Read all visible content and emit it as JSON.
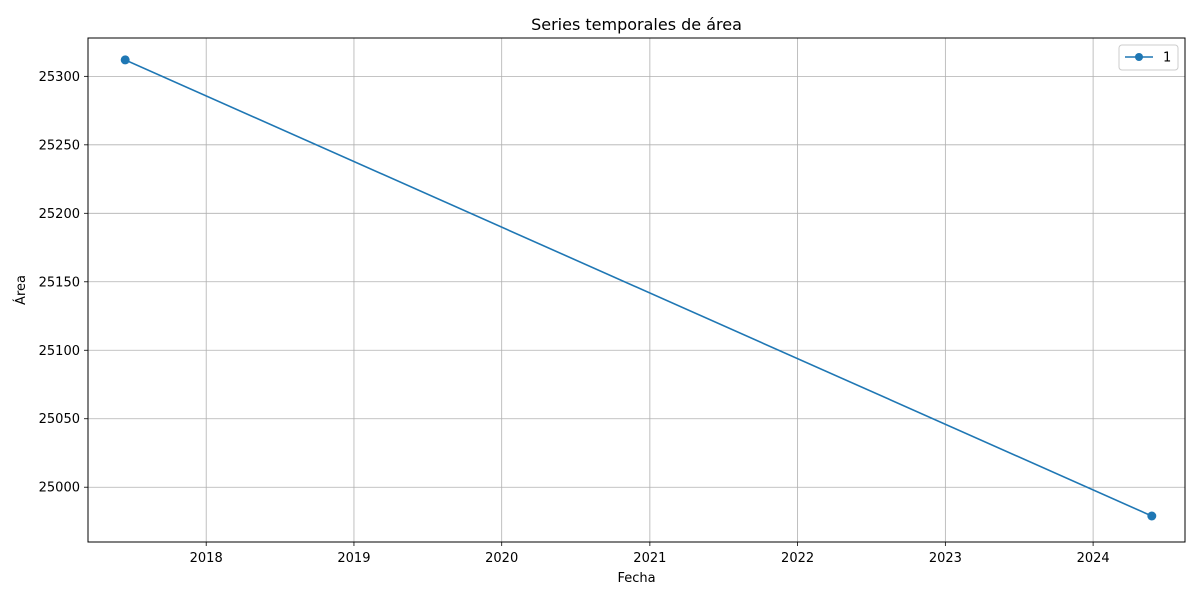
{
  "chart_data": {
    "type": "line",
    "title": "Series temporales de área",
    "xlabel": "Fecha",
    "ylabel": "Área",
    "x_ticks": [
      "2018",
      "2019",
      "2020",
      "2021",
      "2022",
      "2023",
      "2024"
    ],
    "y_ticks": [
      "25000",
      "25050",
      "25100",
      "25150",
      "25200",
      "25250",
      "25300"
    ],
    "xlim": [
      "2017-03-15",
      "2024-08-15"
    ],
    "ylim": [
      24960,
      25328
    ],
    "grid": true,
    "legend_position": "top-right",
    "series": [
      {
        "name": "1",
        "color": "#1f77b4",
        "marker": "circle",
        "points": [
          {
            "x": "2017-06-15",
            "y": 25312
          },
          {
            "x": "2024-05-25",
            "y": 24979
          }
        ]
      }
    ]
  }
}
